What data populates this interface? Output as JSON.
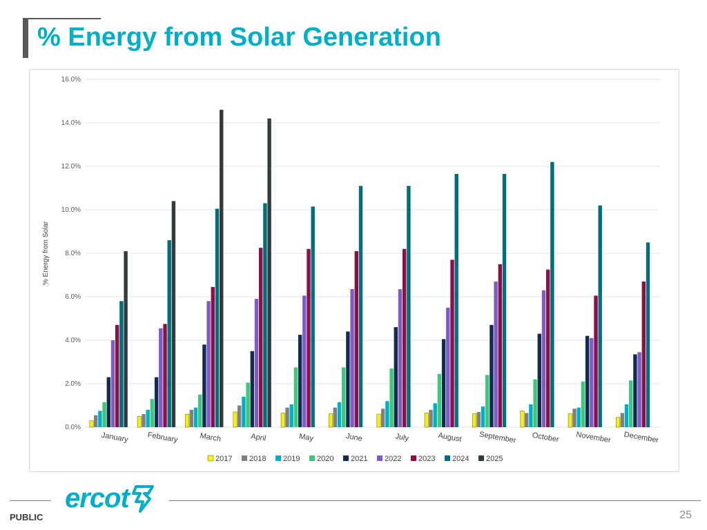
{
  "slide": {
    "title": "% Energy from Solar Generation",
    "footer_label": "PUBLIC",
    "page_number": "25",
    "logo_text": "ercot"
  },
  "chart_data": {
    "type": "bar",
    "title": "",
    "xlabel": "",
    "ylabel": "% Energy from Solar",
    "ylim": [
      0,
      16
    ],
    "yticks": [
      "0.0%",
      "2.0%",
      "4.0%",
      "6.0%",
      "8.0%",
      "10.0%",
      "12.0%",
      "14.0%",
      "16.0%"
    ],
    "grid": true,
    "legend_position": "bottom",
    "categories": [
      "January",
      "February",
      "March",
      "April",
      "May",
      "June",
      "July",
      "August",
      "September",
      "October",
      "November",
      "December"
    ],
    "series": [
      {
        "name": "2017",
        "color": "#F2F21A",
        "values": [
          0.3,
          0.5,
          0.6,
          0.7,
          0.65,
          0.62,
          0.6,
          0.65,
          0.62,
          0.75,
          0.62,
          0.45
        ]
      },
      {
        "name": "2018",
        "color": "#808080",
        "values": [
          0.55,
          0.6,
          0.8,
          1.0,
          0.9,
          0.9,
          0.85,
          0.8,
          0.7,
          0.65,
          0.85,
          0.65
        ]
      },
      {
        "name": "2019",
        "color": "#00AEC7",
        "values": [
          0.75,
          0.8,
          0.9,
          1.4,
          1.05,
          1.15,
          1.2,
          1.1,
          0.95,
          1.05,
          0.9,
          1.05
        ]
      },
      {
        "name": "2020",
        "color": "#3CC878",
        "values": [
          1.15,
          1.3,
          1.5,
          2.05,
          2.75,
          2.75,
          2.7,
          2.45,
          2.4,
          2.2,
          2.1,
          2.15
        ]
      },
      {
        "name": "2021",
        "color": "#0F2D50",
        "values": [
          2.3,
          2.3,
          3.8,
          3.5,
          4.25,
          4.4,
          4.6,
          4.05,
          4.7,
          4.3,
          4.2,
          3.35
        ]
      },
      {
        "name": "2022",
        "color": "#7D5AC8",
        "values": [
          4.0,
          4.55,
          5.8,
          5.9,
          6.05,
          6.35,
          6.35,
          5.5,
          6.7,
          6.3,
          4.1,
          3.45
        ]
      },
      {
        "name": "2023",
        "color": "#8C0F46",
        "values": [
          4.7,
          4.75,
          6.45,
          8.25,
          8.2,
          8.1,
          8.2,
          7.7,
          7.5,
          7.25,
          6.05,
          6.7
        ]
      },
      {
        "name": "2024",
        "color": "#006E7D",
        "values": [
          5.8,
          8.6,
          10.05,
          10.3,
          10.15,
          11.1,
          11.1,
          11.65,
          11.65,
          12.2,
          10.2,
          8.5
        ]
      },
      {
        "name": "2025",
        "color": "#323C3C",
        "values": [
          8.1,
          10.4,
          14.6,
          14.2,
          null,
          null,
          null,
          null,
          null,
          null,
          null,
          null
        ]
      }
    ]
  }
}
